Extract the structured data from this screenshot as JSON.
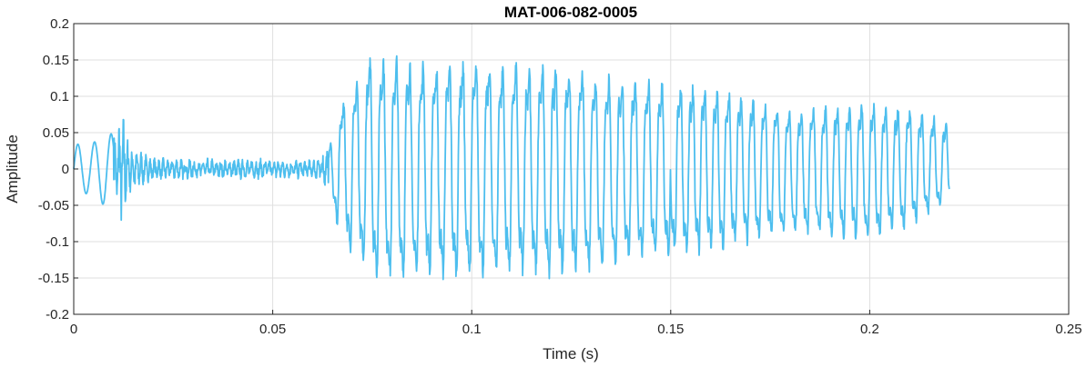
{
  "chart_data": {
    "type": "line",
    "title": "MAT-006-082-0005",
    "xlabel": "Time (s)",
    "ylabel": "Amplitude",
    "xlim": [
      0,
      0.25
    ],
    "ylim": [
      -0.2,
      0.2
    ],
    "grid": true,
    "line_color": "#4dbeee",
    "x_ticks": [
      0,
      0.05,
      0.1,
      0.15,
      0.2,
      0.25
    ],
    "x_tick_labels": [
      "0",
      "0.05",
      "0.1",
      "0.15",
      "0.2",
      "0.25"
    ],
    "y_ticks": [
      0.2,
      0.15,
      0.1,
      0.05,
      0,
      -0.05,
      -0.1,
      -0.15,
      -0.2
    ],
    "y_tick_labels": [
      "0.2",
      "0.15",
      "0.1",
      "0.05",
      "0",
      "-0.05",
      "-0.1",
      "-0.15",
      "-0.2"
    ],
    "series": [
      {
        "duration": 0.22,
        "envelope": [
          {
            "t": 0.0,
            "pos": 0.034,
            "neg": -0.034
          },
          {
            "t": 0.004,
            "pos": 0.034,
            "neg": -0.034
          },
          {
            "t": 0.01,
            "pos": 0.05,
            "neg": -0.06
          },
          {
            "t": 0.012,
            "pos": 0.088,
            "neg": -0.08
          },
          {
            "t": 0.014,
            "pos": 0.035,
            "neg": -0.035
          },
          {
            "t": 0.02,
            "pos": 0.016,
            "neg": -0.016
          },
          {
            "t": 0.06,
            "pos": 0.014,
            "neg": -0.014
          },
          {
            "t": 0.064,
            "pos": 0.03,
            "neg": -0.03
          },
          {
            "t": 0.067,
            "pos": 0.11,
            "neg": -0.12
          },
          {
            "t": 0.075,
            "pos": 0.195,
            "neg": -0.18
          },
          {
            "t": 0.09,
            "pos": 0.18,
            "neg": -0.185
          },
          {
            "t": 0.11,
            "pos": 0.18,
            "neg": -0.175
          },
          {
            "t": 0.125,
            "pos": 0.17,
            "neg": -0.18
          },
          {
            "t": 0.14,
            "pos": 0.15,
            "neg": -0.155
          },
          {
            "t": 0.16,
            "pos": 0.14,
            "neg": -0.14
          },
          {
            "t": 0.18,
            "pos": 0.1,
            "neg": -0.11
          },
          {
            "t": 0.2,
            "pos": 0.11,
            "neg": -0.12
          },
          {
            "t": 0.21,
            "pos": 0.1,
            "neg": -0.1
          },
          {
            "t": 0.22,
            "pos": 0.08,
            "neg": -0.05
          }
        ]
      }
    ]
  }
}
